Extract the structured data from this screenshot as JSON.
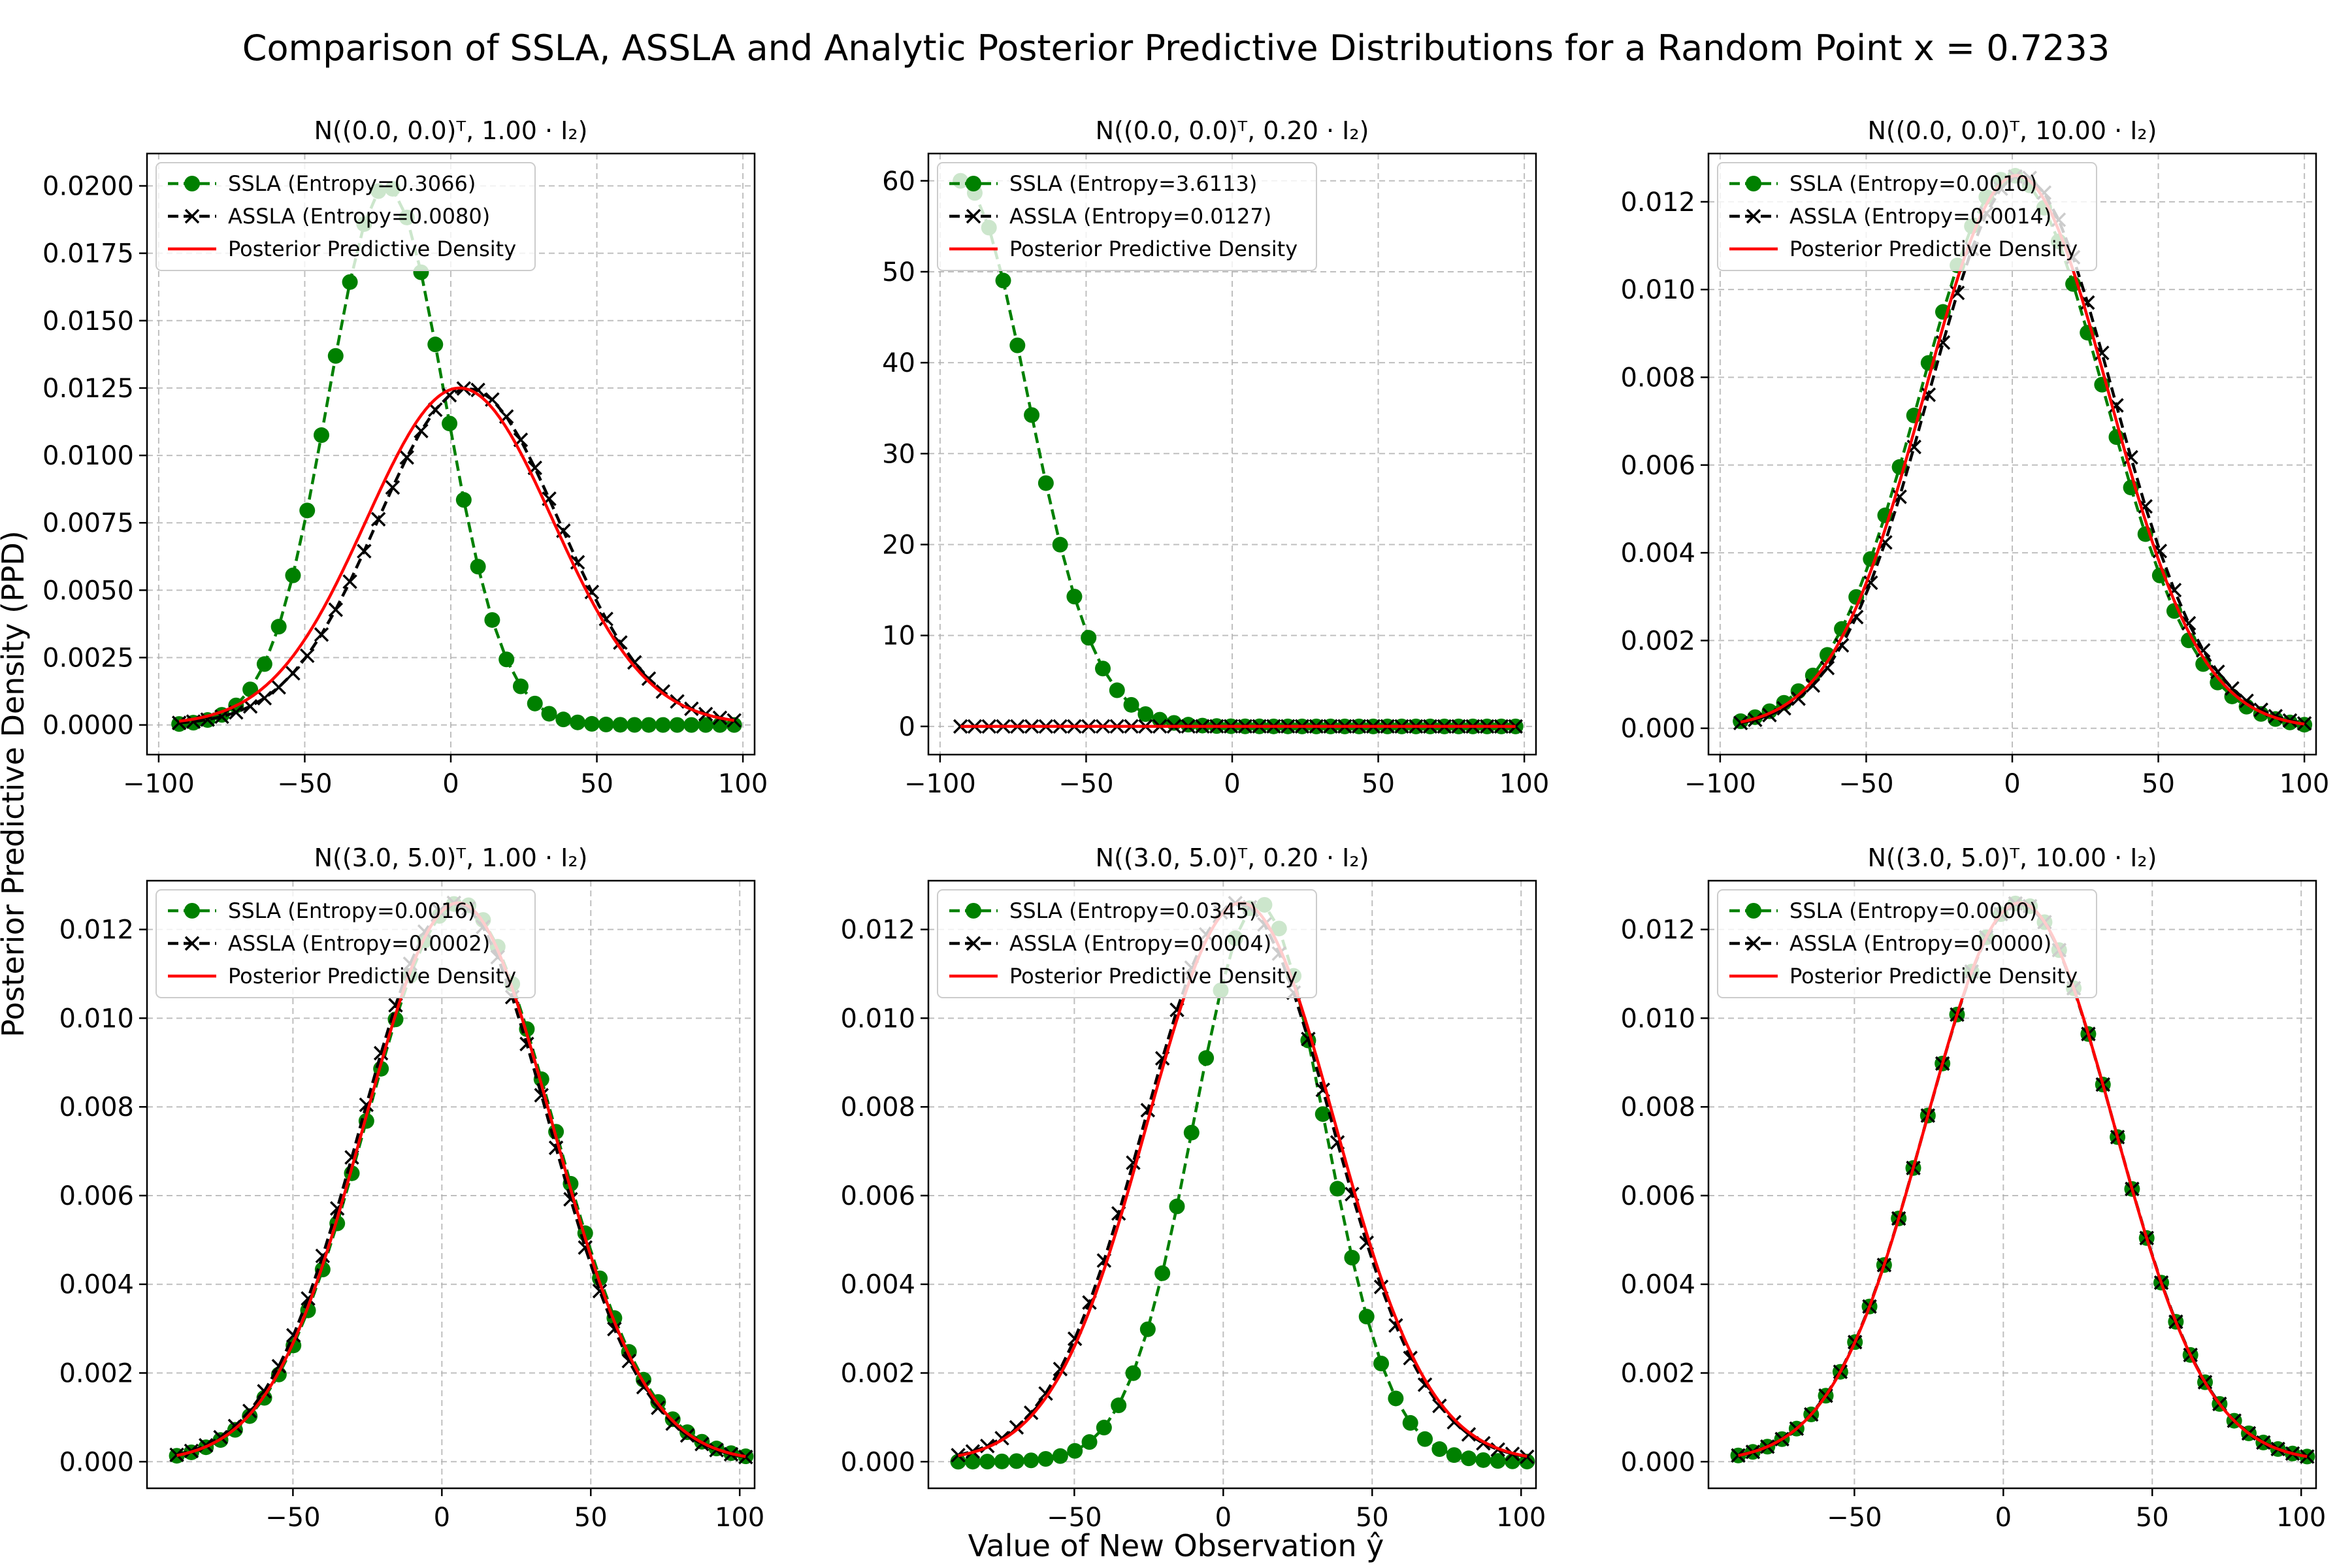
{
  "figure": {
    "title": "Comparison of SSLA, ASSLA and Analytic Posterior Predictive Distributions for a Random Point x = 0.7233",
    "xlabel": "Value of New Observation ŷ",
    "ylabel": "Posterior Predictive Density (PPD)"
  },
  "colors": {
    "ssla": "#008000",
    "assla": "#000000",
    "ppd": "#ff0000"
  },
  "chart_data": [
    {
      "type": "line",
      "title": "N((0.0, 0.0)ᵀ, 1.00 · I₂)",
      "legend": [
        "SSLA (Entropy=0.3066)",
        "ASSLA (Entropy=0.0080)",
        "Posterior Predictive Density"
      ],
      "xlim": [
        -104,
        104
      ],
      "ylim": [
        -0.0011,
        0.0212
      ],
      "xticks": [
        -100,
        -50,
        0,
        50,
        100
      ],
      "yticks": [
        0.0,
        0.0025,
        0.005,
        0.0075,
        0.01,
        0.0125,
        0.015,
        0.0175,
        0.02
      ],
      "ydecimals": 4,
      "x_range": [
        -93,
        97
      ],
      "series": [
        {
          "name": "SSLA",
          "mu": -22,
          "sigma": 20,
          "peak": 0.02,
          "style": "ssla"
        },
        {
          "name": "ASSLA",
          "mu": 6,
          "sigma": 31,
          "peak": 0.0125,
          "style": "assla"
        },
        {
          "name": "Posterior Predictive Density",
          "mu": 3,
          "sigma": 32,
          "peak": 0.0125,
          "style": "ppd"
        }
      ]
    },
    {
      "type": "line",
      "title": "N((0.0, 0.0)ᵀ, 0.20 · I₂)",
      "legend": [
        "SSLA (Entropy=3.6113)",
        "ASSLA (Entropy=0.0127)",
        "Posterior Predictive Density"
      ],
      "xlim": [
        -104,
        104
      ],
      "ylim": [
        -3.1,
        63
      ],
      "xticks": [
        -100,
        -50,
        0,
        50,
        100
      ],
      "yticks": [
        0,
        10,
        20,
        30,
        40,
        50,
        60
      ],
      "ydecimals": 0,
      "x_range": [
        -93,
        97
      ],
      "series": [
        {
          "name": "SSLA",
          "mu": -93,
          "sigma": 23,
          "peak": 60,
          "style": "ssla"
        },
        {
          "name": "ASSLA",
          "mu": 6,
          "sigma": 31,
          "peak": 0.0125,
          "style": "assla"
        },
        {
          "name": "Posterior Predictive Density",
          "mu": 3,
          "sigma": 32,
          "peak": 0.0125,
          "style": "ppd"
        }
      ]
    },
    {
      "type": "line",
      "title": "N((0.0, 0.0)ᵀ, 10.00 · I₂)",
      "legend": [
        "SSLA (Entropy=0.0010)",
        "ASSLA (Entropy=0.0014)",
        "Posterior Predictive Density"
      ],
      "xlim": [
        -104,
        104
      ],
      "ylim": [
        -0.0006,
        0.0131
      ],
      "xticks": [
        -100,
        -50,
        0,
        50,
        100
      ],
      "yticks": [
        0.0,
        0.002,
        0.004,
        0.006,
        0.008,
        0.01,
        0.012
      ],
      "ydecimals": 3,
      "x_range": [
        -93,
        100
      ],
      "series": [
        {
          "name": "SSLA",
          "mu": 0,
          "sigma": 31.5,
          "peak": 0.0126,
          "style": "ssla"
        },
        {
          "name": "ASSLA",
          "mu": 3,
          "sigma": 31.5,
          "peak": 0.0126,
          "style": "assla"
        },
        {
          "name": "Posterior Predictive Density",
          "mu": 1.5,
          "sigma": 31.5,
          "peak": 0.0126,
          "style": "ppd"
        }
      ]
    },
    {
      "type": "line",
      "title": "N((3.0, 5.0)ᵀ, 1.00 · I₂)",
      "legend": [
        "SSLA (Entropy=0.0016)",
        "ASSLA (Entropy=0.0002)",
        "Posterior Predictive Density"
      ],
      "xlim": [
        -99,
        105
      ],
      "ylim": [
        -0.0006,
        0.0131
      ],
      "xticks": [
        -50,
        0,
        50,
        100
      ],
      "yticks": [
        0.0,
        0.002,
        0.004,
        0.006,
        0.008,
        0.01,
        0.012
      ],
      "ydecimals": 3,
      "x_range": [
        -89,
        102
      ],
      "series": [
        {
          "name": "SSLA",
          "mu": 6,
          "sigma": 31.5,
          "peak": 0.0126,
          "style": "ssla"
        },
        {
          "name": "ASSLA",
          "mu": 4.5,
          "sigma": 31.5,
          "peak": 0.0126,
          "style": "assla"
        },
        {
          "name": "Posterior Predictive Density",
          "mu": 5.5,
          "sigma": 31.5,
          "peak": 0.0126,
          "style": "ppd"
        }
      ]
    },
    {
      "type": "line",
      "title": "N((3.0, 5.0)ᵀ, 0.20 · I₂)",
      "legend": [
        "SSLA (Entropy=0.0345)",
        "ASSLA (Entropy=0.0004)",
        "Posterior Predictive Density"
      ],
      "xlim": [
        -99,
        105
      ],
      "ylim": [
        -0.0006,
        0.0131
      ],
      "xticks": [
        -50,
        0,
        50,
        100
      ],
      "yticks": [
        0.0,
        0.002,
        0.004,
        0.006,
        0.008,
        0.01,
        0.012
      ],
      "ydecimals": 3,
      "x_range": [
        -89,
        102
      ],
      "series": [
        {
          "name": "SSLA",
          "mu": 12,
          "sigma": 22,
          "peak": 0.0126,
          "style": "ssla"
        },
        {
          "name": "ASSLA",
          "mu": 5,
          "sigma": 31.5,
          "peak": 0.0126,
          "style": "assla"
        },
        {
          "name": "Posterior Predictive Density",
          "mu": 6,
          "sigma": 31.5,
          "peak": 0.0126,
          "style": "ppd"
        }
      ]
    },
    {
      "type": "line",
      "title": "N((3.0, 5.0)ᵀ, 10.00 · I₂)",
      "legend": [
        "SSLA (Entropy=0.0000)",
        "ASSLA (Entropy=0.0000)",
        "Posterior Predictive Density"
      ],
      "xlim": [
        -99,
        105
      ],
      "ylim": [
        -0.0006,
        0.0131
      ],
      "xticks": [
        -50,
        0,
        50,
        100
      ],
      "yticks": [
        0.0,
        0.002,
        0.004,
        0.006,
        0.008,
        0.01,
        0.012
      ],
      "ydecimals": 3,
      "x_range": [
        -89,
        102
      ],
      "series": [
        {
          "name": "SSLA",
          "mu": 5.5,
          "sigma": 31.5,
          "peak": 0.0126,
          "style": "ssla"
        },
        {
          "name": "ASSLA",
          "mu": 5.5,
          "sigma": 31.5,
          "peak": 0.0126,
          "style": "assla"
        },
        {
          "name": "Posterior Predictive Density",
          "mu": 5.5,
          "sigma": 31.5,
          "peak": 0.0126,
          "style": "ppd"
        }
      ]
    }
  ]
}
